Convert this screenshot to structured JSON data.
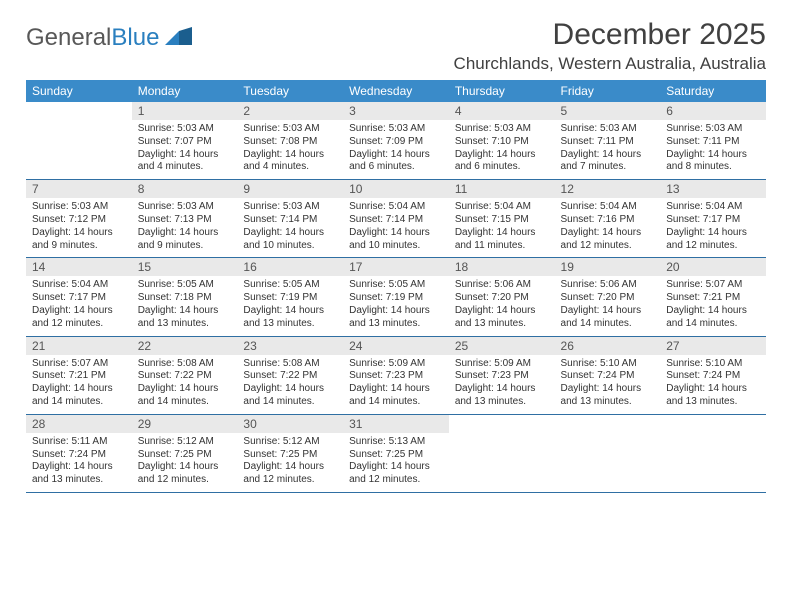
{
  "brand": {
    "word1": "General",
    "word2": "Blue"
  },
  "title": "December 2025",
  "location": "Churchlands, Western Australia, Australia",
  "colors": {
    "header_bg": "#3a8bc9",
    "header_text": "#ffffff",
    "daynum_bg": "#e9e9e9",
    "row_border": "#2f6fa3",
    "title_color": "#404040",
    "logo_gray": "#585858",
    "logo_blue": "#2a7fbf"
  },
  "weekdays": [
    "Sunday",
    "Monday",
    "Tuesday",
    "Wednesday",
    "Thursday",
    "Friday",
    "Saturday"
  ],
  "week1": [
    {
      "num": "",
      "lines": []
    },
    {
      "num": "1",
      "lines": [
        "Sunrise: 5:03 AM",
        "Sunset: 7:07 PM",
        "Daylight: 14 hours",
        "and 4 minutes."
      ]
    },
    {
      "num": "2",
      "lines": [
        "Sunrise: 5:03 AM",
        "Sunset: 7:08 PM",
        "Daylight: 14 hours",
        "and 4 minutes."
      ]
    },
    {
      "num": "3",
      "lines": [
        "Sunrise: 5:03 AM",
        "Sunset: 7:09 PM",
        "Daylight: 14 hours",
        "and 6 minutes."
      ]
    },
    {
      "num": "4",
      "lines": [
        "Sunrise: 5:03 AM",
        "Sunset: 7:10 PM",
        "Daylight: 14 hours",
        "and 6 minutes."
      ]
    },
    {
      "num": "5",
      "lines": [
        "Sunrise: 5:03 AM",
        "Sunset: 7:11 PM",
        "Daylight: 14 hours",
        "and 7 minutes."
      ]
    },
    {
      "num": "6",
      "lines": [
        "Sunrise: 5:03 AM",
        "Sunset: 7:11 PM",
        "Daylight: 14 hours",
        "and 8 minutes."
      ]
    }
  ],
  "week2": [
    {
      "num": "7",
      "lines": [
        "Sunrise: 5:03 AM",
        "Sunset: 7:12 PM",
        "Daylight: 14 hours",
        "and 9 minutes."
      ]
    },
    {
      "num": "8",
      "lines": [
        "Sunrise: 5:03 AM",
        "Sunset: 7:13 PM",
        "Daylight: 14 hours",
        "and 9 minutes."
      ]
    },
    {
      "num": "9",
      "lines": [
        "Sunrise: 5:03 AM",
        "Sunset: 7:14 PM",
        "Daylight: 14 hours",
        "and 10 minutes."
      ]
    },
    {
      "num": "10",
      "lines": [
        "Sunrise: 5:04 AM",
        "Sunset: 7:14 PM",
        "Daylight: 14 hours",
        "and 10 minutes."
      ]
    },
    {
      "num": "11",
      "lines": [
        "Sunrise: 5:04 AM",
        "Sunset: 7:15 PM",
        "Daylight: 14 hours",
        "and 11 minutes."
      ]
    },
    {
      "num": "12",
      "lines": [
        "Sunrise: 5:04 AM",
        "Sunset: 7:16 PM",
        "Daylight: 14 hours",
        "and 12 minutes."
      ]
    },
    {
      "num": "13",
      "lines": [
        "Sunrise: 5:04 AM",
        "Sunset: 7:17 PM",
        "Daylight: 14 hours",
        "and 12 minutes."
      ]
    }
  ],
  "week3": [
    {
      "num": "14",
      "lines": [
        "Sunrise: 5:04 AM",
        "Sunset: 7:17 PM",
        "Daylight: 14 hours",
        "and 12 minutes."
      ]
    },
    {
      "num": "15",
      "lines": [
        "Sunrise: 5:05 AM",
        "Sunset: 7:18 PM",
        "Daylight: 14 hours",
        "and 13 minutes."
      ]
    },
    {
      "num": "16",
      "lines": [
        "Sunrise: 5:05 AM",
        "Sunset: 7:19 PM",
        "Daylight: 14 hours",
        "and 13 minutes."
      ]
    },
    {
      "num": "17",
      "lines": [
        "Sunrise: 5:05 AM",
        "Sunset: 7:19 PM",
        "Daylight: 14 hours",
        "and 13 minutes."
      ]
    },
    {
      "num": "18",
      "lines": [
        "Sunrise: 5:06 AM",
        "Sunset: 7:20 PM",
        "Daylight: 14 hours",
        "and 13 minutes."
      ]
    },
    {
      "num": "19",
      "lines": [
        "Sunrise: 5:06 AM",
        "Sunset: 7:20 PM",
        "Daylight: 14 hours",
        "and 14 minutes."
      ]
    },
    {
      "num": "20",
      "lines": [
        "Sunrise: 5:07 AM",
        "Sunset: 7:21 PM",
        "Daylight: 14 hours",
        "and 14 minutes."
      ]
    }
  ],
  "week4": [
    {
      "num": "21",
      "lines": [
        "Sunrise: 5:07 AM",
        "Sunset: 7:21 PM",
        "Daylight: 14 hours",
        "and 14 minutes."
      ]
    },
    {
      "num": "22",
      "lines": [
        "Sunrise: 5:08 AM",
        "Sunset: 7:22 PM",
        "Daylight: 14 hours",
        "and 14 minutes."
      ]
    },
    {
      "num": "23",
      "lines": [
        "Sunrise: 5:08 AM",
        "Sunset: 7:22 PM",
        "Daylight: 14 hours",
        "and 14 minutes."
      ]
    },
    {
      "num": "24",
      "lines": [
        "Sunrise: 5:09 AM",
        "Sunset: 7:23 PM",
        "Daylight: 14 hours",
        "and 14 minutes."
      ]
    },
    {
      "num": "25",
      "lines": [
        "Sunrise: 5:09 AM",
        "Sunset: 7:23 PM",
        "Daylight: 14 hours",
        "and 13 minutes."
      ]
    },
    {
      "num": "26",
      "lines": [
        "Sunrise: 5:10 AM",
        "Sunset: 7:24 PM",
        "Daylight: 14 hours",
        "and 13 minutes."
      ]
    },
    {
      "num": "27",
      "lines": [
        "Sunrise: 5:10 AM",
        "Sunset: 7:24 PM",
        "Daylight: 14 hours",
        "and 13 minutes."
      ]
    }
  ],
  "week5": [
    {
      "num": "28",
      "lines": [
        "Sunrise: 5:11 AM",
        "Sunset: 7:24 PM",
        "Daylight: 14 hours",
        "and 13 minutes."
      ]
    },
    {
      "num": "29",
      "lines": [
        "Sunrise: 5:12 AM",
        "Sunset: 7:25 PM",
        "Daylight: 14 hours",
        "and 12 minutes."
      ]
    },
    {
      "num": "30",
      "lines": [
        "Sunrise: 5:12 AM",
        "Sunset: 7:25 PM",
        "Daylight: 14 hours",
        "and 12 minutes."
      ]
    },
    {
      "num": "31",
      "lines": [
        "Sunrise: 5:13 AM",
        "Sunset: 7:25 PM",
        "Daylight: 14 hours",
        "and 12 minutes."
      ]
    },
    {
      "num": "",
      "lines": []
    },
    {
      "num": "",
      "lines": []
    },
    {
      "num": "",
      "lines": []
    }
  ]
}
